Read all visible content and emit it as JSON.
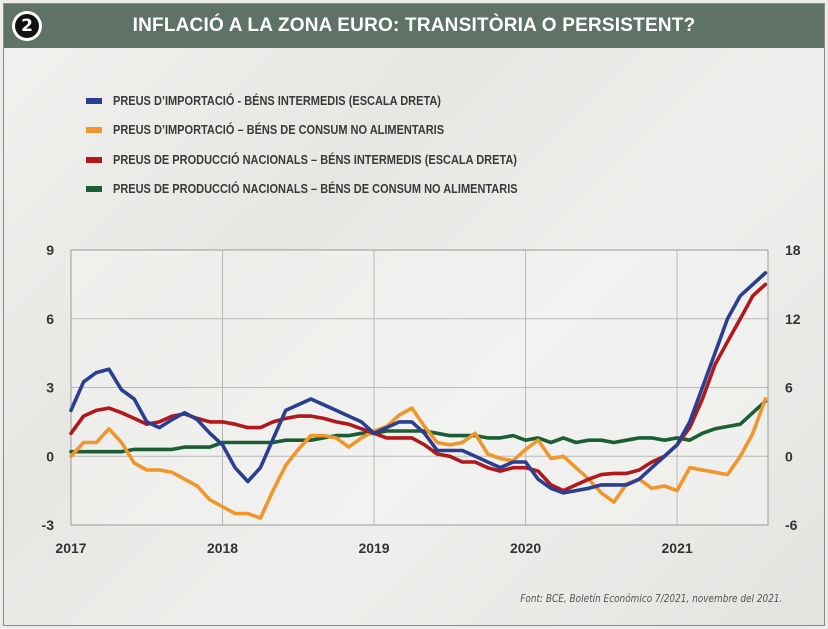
{
  "header": {
    "badge_number": "2",
    "title": "INFLACIÓ A LA ZONA EURO: TRANSITÒRIA O PERSISTENT?",
    "color": "#5e7268"
  },
  "source": "Font: BCE, Boletín Económico 7/2021, novembre del 2021.",
  "chart_data": {
    "type": "line",
    "title": "INFLACIÓ A LA ZONA EURO: TRANSITÒRIA O PERSISTENT?",
    "x_ticks": [
      "2017",
      "2018",
      "2019",
      "2020",
      "2021"
    ],
    "x_range": [
      2017.0,
      2021.6
    ],
    "y_left": {
      "range": [
        -3,
        9
      ],
      "ticks": [
        "-3",
        "0",
        "3",
        "6",
        "9"
      ]
    },
    "y_right": {
      "range": [
        -6,
        18
      ],
      "ticks": [
        "-6",
        "0",
        "6",
        "12",
        "18"
      ]
    },
    "grid": true,
    "legend_position": "top-left",
    "series": [
      {
        "name": "PREUS D’IMPORTACIÓ - BÉNS INTERMEDIS (ESCALA DRETA)",
        "color": "#2a3f91",
        "axis": "right",
        "x": [
          2017.0,
          2017.083,
          2017.167,
          2017.25,
          2017.333,
          2017.417,
          2017.5,
          2017.583,
          2017.667,
          2017.75,
          2017.833,
          2017.917,
          2018.0,
          2018.083,
          2018.167,
          2018.25,
          2018.333,
          2018.417,
          2018.5,
          2018.583,
          2018.667,
          2018.75,
          2018.833,
          2018.917,
          2019.0,
          2019.083,
          2019.167,
          2019.25,
          2019.333,
          2019.417,
          2019.5,
          2019.583,
          2019.667,
          2019.75,
          2019.833,
          2019.917,
          2020.0,
          2020.083,
          2020.167,
          2020.25,
          2020.333,
          2020.417,
          2020.5,
          2020.583,
          2020.667,
          2020.75,
          2020.833,
          2020.917,
          2021.0,
          2021.083,
          2021.167,
          2021.25,
          2021.333,
          2021.417,
          2021.5,
          2021.583
        ],
        "y": [
          4.0,
          6.5,
          7.3,
          7.6,
          5.8,
          5.0,
          3.0,
          2.5,
          3.2,
          3.8,
          3.2,
          2.0,
          1.0,
          -1.0,
          -2.2,
          -1.0,
          1.5,
          4.0,
          4.5,
          5.0,
          4.5,
          4.0,
          3.5,
          3.0,
          2.0,
          2.5,
          3.0,
          3.0,
          2.0,
          0.5,
          0.5,
          0.5,
          0.0,
          -0.5,
          -1.0,
          -0.5,
          -0.5,
          -2.0,
          -2.8,
          -3.2,
          -3.0,
          -2.8,
          -2.5,
          -2.5,
          -2.5,
          -2.0,
          -1.0,
          0.0,
          1.0,
          3.0,
          6.0,
          9.0,
          12.0,
          14.0,
          15.0,
          16.0
        ]
      },
      {
        "name": "PREUS D’IMPORTACIÓ – BÉNS DE CONSUM NO ALIMENTARIS",
        "color": "#f0962a",
        "axis": "left",
        "x": [
          2017.0,
          2017.083,
          2017.167,
          2017.25,
          2017.333,
          2017.417,
          2017.5,
          2017.583,
          2017.667,
          2017.75,
          2017.833,
          2017.917,
          2018.0,
          2018.083,
          2018.167,
          2018.25,
          2018.333,
          2018.417,
          2018.5,
          2018.583,
          2018.667,
          2018.75,
          2018.833,
          2018.917,
          2019.0,
          2019.083,
          2019.167,
          2019.25,
          2019.333,
          2019.417,
          2019.5,
          2019.583,
          2019.667,
          2019.75,
          2019.833,
          2019.917,
          2020.0,
          2020.083,
          2020.167,
          2020.25,
          2020.333,
          2020.417,
          2020.5,
          2020.583,
          2020.667,
          2020.75,
          2020.833,
          2020.917,
          2021.0,
          2021.083,
          2021.167,
          2021.25,
          2021.333,
          2021.417,
          2021.5,
          2021.583
        ],
        "y": [
          0.0,
          0.6,
          0.6,
          1.2,
          0.6,
          -0.3,
          -0.6,
          -0.6,
          -0.7,
          -1.0,
          -1.3,
          -1.9,
          -2.2,
          -2.5,
          -2.5,
          -2.7,
          -1.5,
          -0.4,
          0.3,
          0.9,
          0.9,
          0.8,
          0.4,
          0.8,
          1.1,
          1.3,
          1.8,
          2.1,
          1.3,
          0.6,
          0.5,
          0.6,
          1.0,
          0.1,
          -0.1,
          -0.2,
          0.3,
          0.7,
          -0.1,
          0.0,
          -0.5,
          -1.0,
          -1.6,
          -2.0,
          -1.2,
          -1.0,
          -1.4,
          -1.3,
          -1.5,
          -0.5,
          -0.6,
          -0.7,
          -0.8,
          0.0,
          1.0,
          2.5
        ]
      },
      {
        "name": "PREUS DE PRODUCCIÓ NACIONALS – BÉNS INTERMEDIS (ESCALA DRETA)",
        "color": "#b0181c",
        "axis": "right",
        "x": [
          2017.0,
          2017.083,
          2017.167,
          2017.25,
          2017.333,
          2017.417,
          2017.5,
          2017.583,
          2017.667,
          2017.75,
          2017.833,
          2017.917,
          2018.0,
          2018.083,
          2018.167,
          2018.25,
          2018.333,
          2018.417,
          2018.5,
          2018.583,
          2018.667,
          2018.75,
          2018.833,
          2018.917,
          2019.0,
          2019.083,
          2019.167,
          2019.25,
          2019.333,
          2019.417,
          2019.5,
          2019.583,
          2019.667,
          2019.75,
          2019.833,
          2019.917,
          2020.0,
          2020.083,
          2020.167,
          2020.25,
          2020.333,
          2020.417,
          2020.5,
          2020.583,
          2020.667,
          2020.75,
          2020.833,
          2020.917,
          2021.0,
          2021.083,
          2021.167,
          2021.25,
          2021.333,
          2021.417,
          2021.5,
          2021.583
        ],
        "y": [
          2.0,
          3.5,
          4.0,
          4.2,
          3.8,
          3.3,
          2.8,
          3.0,
          3.5,
          3.7,
          3.3,
          3.0,
          3.0,
          2.8,
          2.5,
          2.5,
          3.0,
          3.3,
          3.5,
          3.5,
          3.3,
          3.0,
          2.8,
          2.4,
          2.0,
          1.6,
          1.6,
          1.6,
          1.0,
          0.2,
          0.0,
          -0.5,
          -0.5,
          -1.0,
          -1.3,
          -1.0,
          -1.0,
          -1.3,
          -2.5,
          -3.0,
          -2.5,
          -2.0,
          -1.6,
          -1.5,
          -1.5,
          -1.2,
          -0.5,
          0.0,
          1.0,
          2.5,
          5.0,
          8.0,
          10.0,
          12.0,
          14.0,
          15.0
        ]
      },
      {
        "name": "PREUS DE PRODUCCIÓ NACIONALS – BÉNS DE CONSUM NO ALIMENTARIS",
        "color": "#1c5e34",
        "axis": "left",
        "x": [
          2017.0,
          2017.083,
          2017.167,
          2017.25,
          2017.333,
          2017.417,
          2017.5,
          2017.583,
          2017.667,
          2017.75,
          2017.833,
          2017.917,
          2018.0,
          2018.083,
          2018.167,
          2018.25,
          2018.333,
          2018.417,
          2018.5,
          2018.583,
          2018.667,
          2018.75,
          2018.833,
          2018.917,
          2019.0,
          2019.083,
          2019.167,
          2019.25,
          2019.333,
          2019.417,
          2019.5,
          2019.583,
          2019.667,
          2019.75,
          2019.833,
          2019.917,
          2020.0,
          2020.083,
          2020.167,
          2020.25,
          2020.333,
          2020.417,
          2020.5,
          2020.583,
          2020.667,
          2020.75,
          2020.833,
          2020.917,
          2021.0,
          2021.083,
          2021.167,
          2021.25,
          2021.333,
          2021.417,
          2021.5,
          2021.583
        ],
        "y": [
          0.2,
          0.2,
          0.2,
          0.2,
          0.2,
          0.3,
          0.3,
          0.3,
          0.3,
          0.4,
          0.4,
          0.4,
          0.6,
          0.6,
          0.6,
          0.6,
          0.6,
          0.7,
          0.7,
          0.7,
          0.8,
          0.9,
          0.9,
          1.0,
          1.0,
          1.1,
          1.1,
          1.1,
          1.1,
          1.0,
          0.9,
          0.9,
          0.9,
          0.8,
          0.8,
          0.9,
          0.7,
          0.8,
          0.6,
          0.8,
          0.6,
          0.7,
          0.7,
          0.6,
          0.7,
          0.8,
          0.8,
          0.7,
          0.8,
          0.7,
          1.0,
          1.2,
          1.3,
          1.4,
          1.9,
          2.4
        ]
      }
    ]
  }
}
